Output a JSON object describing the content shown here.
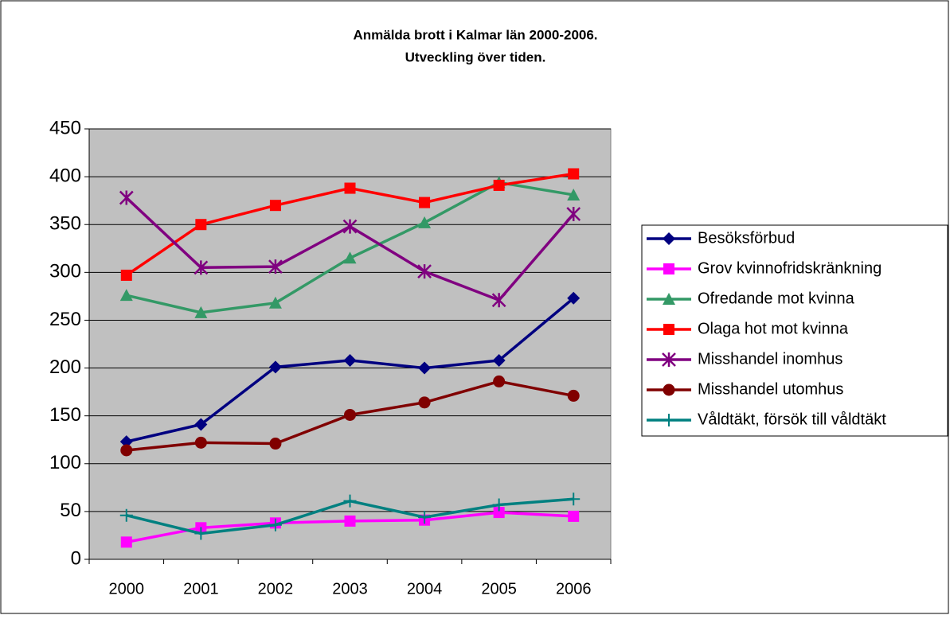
{
  "chart_data": {
    "type": "line",
    "title": [
      "Anmälda brott i Kalmar län 2000-2006.",
      "Utveckling över tiden."
    ],
    "categories": [
      "2000",
      "2001",
      "2002",
      "2003",
      "2004",
      "2005",
      "2006"
    ],
    "series": [
      {
        "name": "Besöksförbud",
        "color": "#000080",
        "marker": "diamond",
        "values": [
          123,
          141,
          201,
          208,
          200,
          208,
          273
        ]
      },
      {
        "name": "Grov kvinnofridskränkning",
        "color": "#ff00ff",
        "marker": "square",
        "values": [
          18,
          33,
          38,
          40,
          41,
          49,
          45
        ]
      },
      {
        "name": "Ofredande mot kvinna",
        "color": "#339966",
        "marker": "triangle",
        "values": [
          276,
          258,
          268,
          315,
          352,
          394,
          381
        ]
      },
      {
        "name": "Olaga hot mot kvinna",
        "color": "#ff0000",
        "marker": "square",
        "values": [
          297,
          350,
          370,
          388,
          373,
          391,
          403
        ]
      },
      {
        "name": "Misshandel inomhus",
        "color": "#800080",
        "marker": "asterisk",
        "values": [
          378,
          305,
          306,
          348,
          301,
          271,
          361
        ]
      },
      {
        "name": "Misshandel utomhus",
        "color": "#800000",
        "marker": "circle",
        "values": [
          114,
          122,
          121,
          151,
          164,
          186,
          171
        ]
      },
      {
        "name": "Våldtäkt, försök till våldtäkt",
        "color": "#008080",
        "marker": "plus",
        "values": [
          46,
          27,
          36,
          61,
          44,
          57,
          63
        ]
      }
    ],
    "ylim": [
      0,
      450
    ],
    "yticks": [
      0,
      50,
      100,
      150,
      200,
      250,
      300,
      350,
      400,
      450
    ],
    "grid": true,
    "plot_background": "#c0c0c0",
    "legend": "right"
  }
}
